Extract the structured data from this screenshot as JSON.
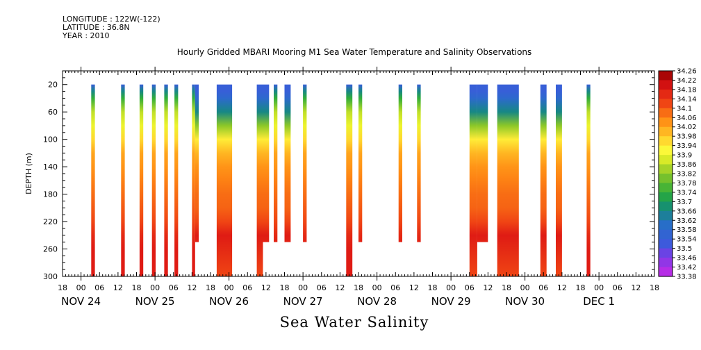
{
  "header": {
    "longitude": "LONGITUDE : 122W(-122)",
    "latitude": "LATITUDE : 36.8N",
    "year": "YEAR : 2010",
    "title": "Hourly Gridded MBARI Mooring M1 Sea Water Temperature and Salinity Observations"
  },
  "footer": {
    "variable": "Sea Water Salinity"
  },
  "chart_data": {
    "type": "heatmap",
    "title": "Hourly Gridded MBARI Mooring M1 Sea Water Temperature and Salinity Observations",
    "xlabel": "",
    "ylabel": "DEPTH (m)",
    "variable": "Sea Water Salinity",
    "x_axis": {
      "unit": "hours since NOV 24 00:00",
      "range_hours": [
        -6,
        186
      ],
      "hour_ticks": [
        "18",
        "00",
        "06",
        "12",
        "18",
        "00",
        "06",
        "12",
        "18",
        "00",
        "06",
        "12",
        "18",
        "00",
        "06",
        "12",
        "18",
        "00",
        "06",
        "12",
        "18",
        "00",
        "06",
        "12",
        "18",
        "00",
        "06",
        "12",
        "18",
        "00",
        "06",
        "12",
        "18"
      ],
      "day_labels": [
        {
          "label": "NOV 24",
          "hour": 0
        },
        {
          "label": "NOV 25",
          "hour": 24
        },
        {
          "label": "NOV 26",
          "hour": 48
        },
        {
          "label": "NOV 27",
          "hour": 72
        },
        {
          "label": "NOV 28",
          "hour": 96
        },
        {
          "label": "NOV 29",
          "hour": 120
        },
        {
          "label": "NOV 30",
          "hour": 144
        },
        {
          "label": "DEC  1",
          "hour": 168
        }
      ]
    },
    "y_axis": {
      "reversed": true,
      "range": [
        0,
        300
      ],
      "ticks": [
        20,
        60,
        100,
        140,
        180,
        220,
        260,
        300
      ],
      "tick_labels": [
        "20",
        "60",
        "100",
        "140",
        "180",
        "220",
        "260",
        "300"
      ]
    },
    "colorbar": {
      "levels": [
        34.26,
        34.22,
        34.18,
        34.14,
        34.1,
        34.06,
        34.02,
        33.98,
        33.94,
        33.9,
        33.86,
        33.82,
        33.78,
        33.74,
        33.7,
        33.66,
        33.62,
        33.58,
        33.54,
        33.5,
        33.46,
        33.42,
        33.38
      ]
    },
    "profile_depths": [
      20,
      30,
      40,
      60,
      80,
      100,
      120,
      140,
      160,
      180,
      200,
      220,
      240,
      260,
      280,
      300
    ],
    "profiles": {
      "A": [
        33.54,
        33.66,
        33.74,
        33.86,
        33.9,
        33.96,
        34.02,
        34.04,
        34.06,
        34.08,
        34.1,
        34.12,
        34.16,
        34.18,
        34.18,
        34.18
      ],
      "B": [
        33.54,
        33.54,
        33.58,
        33.66,
        33.82,
        33.94,
        34.0,
        34.04,
        34.06,
        34.08,
        34.09,
        34.12,
        34.18,
        34.16,
        34.14,
        34.12
      ]
    },
    "segments": [
      {
        "start": 3.3,
        "end": 4.5,
        "bottom": 300,
        "profile": "A"
      },
      {
        "start": 13.0,
        "end": 14.2,
        "bottom": 300,
        "profile": "A"
      },
      {
        "start": 19.0,
        "end": 20.2,
        "bottom": 300,
        "profile": "A"
      },
      {
        "start": 23.0,
        "end": 24.2,
        "bottom": 300,
        "profile": "A"
      },
      {
        "start": 27.0,
        "end": 28.2,
        "bottom": 300,
        "profile": "A"
      },
      {
        "start": 30.3,
        "end": 31.5,
        "bottom": 300,
        "profile": "A"
      },
      {
        "start": 36.0,
        "end": 37.0,
        "bottom": 300,
        "profile": "A"
      },
      {
        "start": 37.0,
        "end": 38.2,
        "bottom": 250,
        "profile": "B"
      },
      {
        "start": 44.0,
        "end": 49.0,
        "bottom": 300,
        "profile": "B"
      },
      {
        "start": 57.0,
        "end": 59.0,
        "bottom": 300,
        "profile": "B"
      },
      {
        "start": 59.0,
        "end": 61.0,
        "bottom": 250,
        "profile": "B"
      },
      {
        "start": 62.5,
        "end": 63.7,
        "bottom": 250,
        "profile": "A"
      },
      {
        "start": 66.0,
        "end": 68.0,
        "bottom": 250,
        "profile": "B"
      },
      {
        "start": 72.0,
        "end": 73.2,
        "bottom": 250,
        "profile": "A"
      },
      {
        "start": 86.0,
        "end": 88.0,
        "bottom": 300,
        "profile": "A"
      },
      {
        "start": 90.0,
        "end": 91.2,
        "bottom": 250,
        "profile": "A"
      },
      {
        "start": 103.0,
        "end": 104.2,
        "bottom": 250,
        "profile": "A"
      },
      {
        "start": 109.0,
        "end": 110.2,
        "bottom": 250,
        "profile": "A"
      },
      {
        "start": 126.0,
        "end": 128.5,
        "bottom": 300,
        "profile": "B"
      },
      {
        "start": 128.5,
        "end": 132.0,
        "bottom": 250,
        "profile": "B"
      },
      {
        "start": 135.0,
        "end": 142.0,
        "bottom": 300,
        "profile": "B"
      },
      {
        "start": 149.0,
        "end": 151.0,
        "bottom": 300,
        "profile": "B"
      },
      {
        "start": 154.0,
        "end": 156.0,
        "bottom": 300,
        "profile": "B"
      },
      {
        "start": 164.0,
        "end": 165.2,
        "bottom": 300,
        "profile": "A"
      }
    ]
  }
}
